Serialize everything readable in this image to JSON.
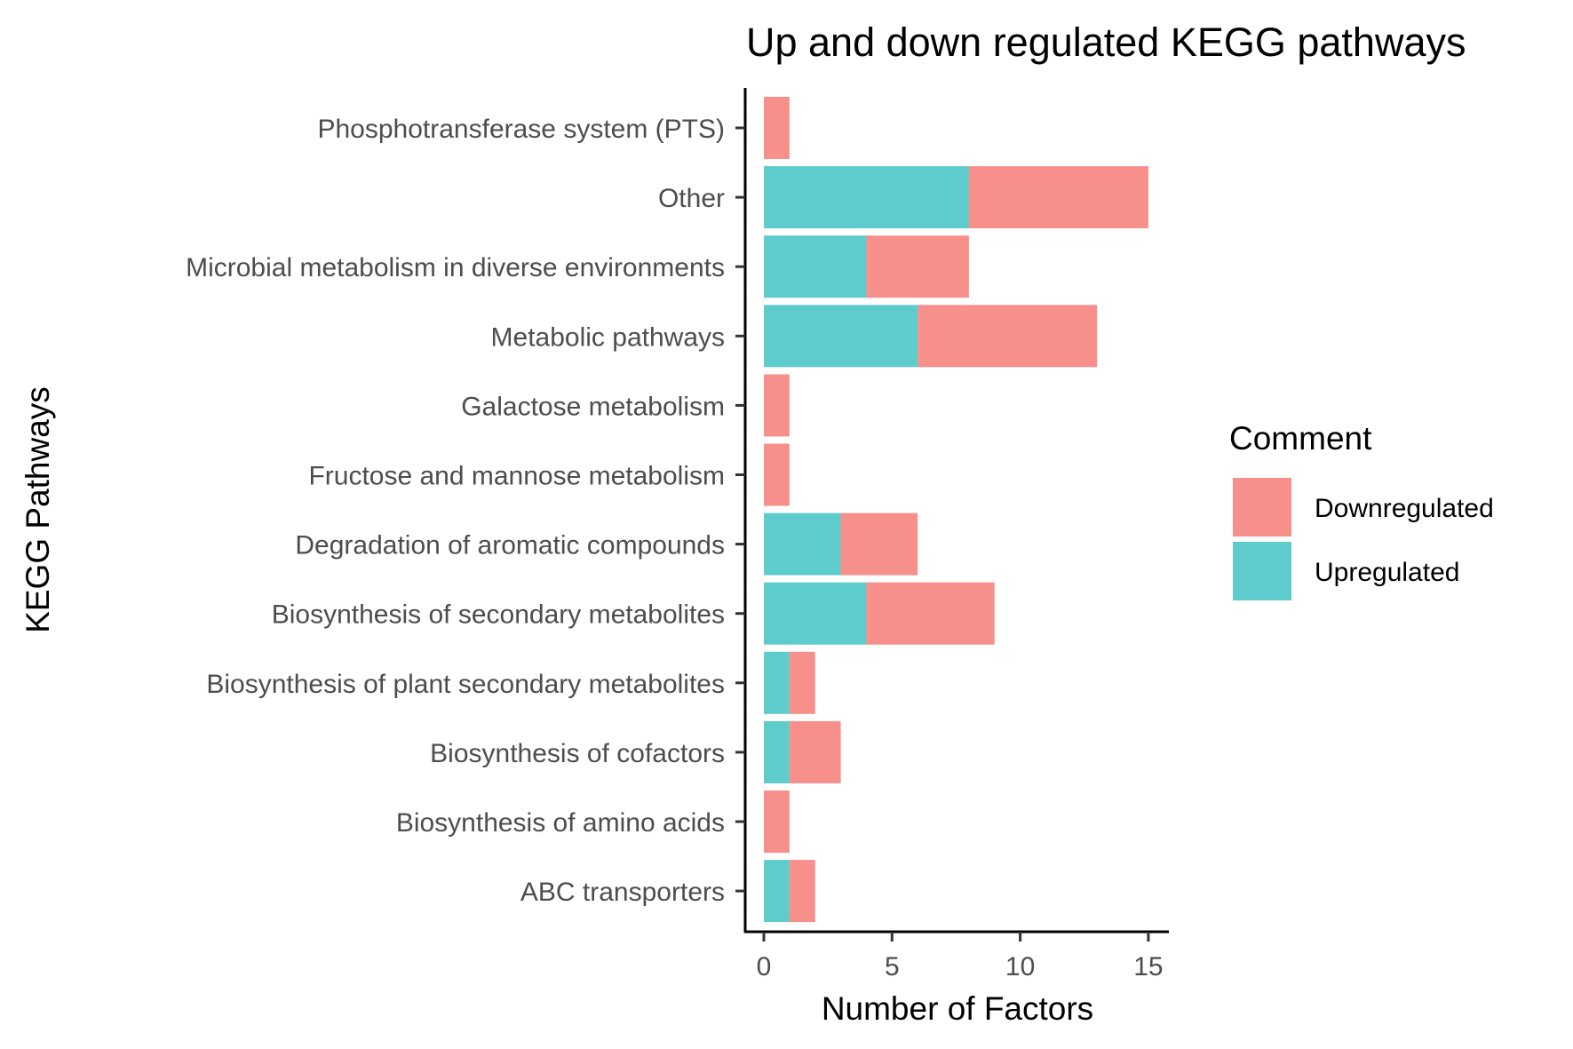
{
  "chart_data": {
    "type": "bar",
    "orientation": "horizontal",
    "stacked": true,
    "title": "Up and down regulated KEGG pathways",
    "xlabel": "Number of Factors",
    "ylabel": "KEGG Pathways",
    "xlim": [
      0,
      15
    ],
    "xticks": [
      0,
      5,
      10,
      15
    ],
    "grid": false,
    "legend_position": "right",
    "legend_title": "Comment",
    "categories": [
      "Phosphotransferase system (PTS)",
      "Other",
      "Microbial metabolism in diverse environments",
      "Metabolic pathways",
      "Galactose metabolism",
      "Fructose and mannose metabolism",
      "Degradation of aromatic compounds",
      "Biosynthesis of secondary metabolites",
      "Biosynthesis of plant secondary metabolites",
      "Biosynthesis of cofactors",
      "Biosynthesis of amino acids",
      "ABC transporters"
    ],
    "series": [
      {
        "name": "Upregulated",
        "color": "#5ecbcc",
        "values": [
          0,
          8,
          4,
          6,
          0,
          0,
          3,
          4,
          1,
          1,
          0,
          1
        ]
      },
      {
        "name": "Downregulated",
        "color": "#f78f8b",
        "values": [
          1,
          7,
          4,
          7,
          1,
          1,
          3,
          5,
          1,
          2,
          1,
          1
        ]
      }
    ],
    "legend_order": [
      "Downregulated",
      "Upregulated"
    ]
  }
}
